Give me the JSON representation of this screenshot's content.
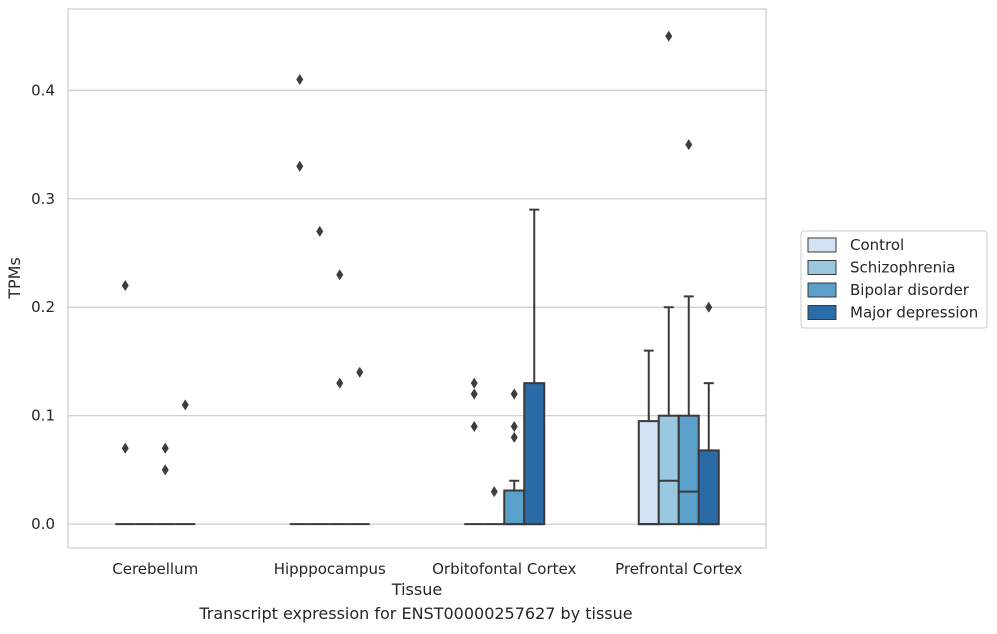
{
  "chart_data": {
    "type": "box",
    "xlabel": "Tissue",
    "ylabel": "TPMs",
    "ylim": [
      -0.022,
      0.475
    ],
    "yticks": [
      0.0,
      0.1,
      0.2,
      0.3,
      0.4
    ],
    "ytick_labels": [
      "0.0",
      "0.1",
      "0.2",
      "0.3",
      "0.4"
    ],
    "grid": "horizontal",
    "legend_position": "right",
    "categories": [
      "Cerebellum",
      "Hipppocampus",
      "Orbitofontal Cortex",
      "Prefrontal Cortex"
    ],
    "series": [
      {
        "name": "Control",
        "color": "#d2e3f3",
        "boxes": [
          {
            "q1": 0,
            "median": 0,
            "q3": 0,
            "whisker_low": 0,
            "whisker_high": 0,
            "outliers": [
              0.07,
              0.22
            ]
          },
          {
            "q1": 0,
            "median": 0,
            "q3": 0,
            "whisker_low": 0,
            "whisker_high": 0,
            "outliers": [
              0.33,
              0.41
            ]
          },
          {
            "q1": 0,
            "median": 0,
            "q3": 0,
            "whisker_low": 0,
            "whisker_high": 0,
            "outliers": [
              0.09,
              0.12,
              0.13
            ]
          },
          {
            "q1": 0,
            "median": 0,
            "q3": 0.095,
            "whisker_low": 0,
            "whisker_high": 0.16,
            "outliers": []
          }
        ]
      },
      {
        "name": "Schizophrenia",
        "color": "#9ac8e0",
        "boxes": [
          {
            "q1": 0,
            "median": 0,
            "q3": 0,
            "whisker_low": 0,
            "whisker_high": 0,
            "outliers": []
          },
          {
            "q1": 0,
            "median": 0,
            "q3": 0,
            "whisker_low": 0,
            "whisker_high": 0,
            "outliers": [
              0.27
            ]
          },
          {
            "q1": 0,
            "median": 0,
            "q3": 0,
            "whisker_low": 0,
            "whisker_high": 0,
            "outliers": [
              0.03
            ]
          },
          {
            "q1": 0,
            "median": 0.04,
            "q3": 0.1,
            "whisker_low": 0,
            "whisker_high": 0.2,
            "outliers": [
              0.45
            ]
          }
        ]
      },
      {
        "name": "Bipolar disorder",
        "color": "#5b9fcb",
        "boxes": [
          {
            "q1": 0,
            "median": 0,
            "q3": 0,
            "whisker_low": 0,
            "whisker_high": 0,
            "outliers": [
              0.05,
              0.07
            ]
          },
          {
            "q1": 0,
            "median": 0,
            "q3": 0,
            "whisker_low": 0,
            "whisker_high": 0,
            "outliers": [
              0.13,
              0.23
            ]
          },
          {
            "q1": 0,
            "median": 0,
            "q3": 0.031,
            "whisker_low": 0,
            "whisker_high": 0.04,
            "outliers": [
              0.08,
              0.09,
              0.12
            ]
          },
          {
            "q1": 0,
            "median": 0.03,
            "q3": 0.1,
            "whisker_low": 0,
            "whisker_high": 0.21,
            "outliers": [
              0.35
            ]
          }
        ]
      },
      {
        "name": "Major depression",
        "color": "#2b6ca8",
        "boxes": [
          {
            "q1": 0,
            "median": 0,
            "q3": 0,
            "whisker_low": 0,
            "whisker_high": 0,
            "outliers": [
              0.11
            ]
          },
          {
            "q1": 0,
            "median": 0,
            "q3": 0,
            "whisker_low": 0,
            "whisker_high": 0,
            "outliers": [
              0.14
            ]
          },
          {
            "q1": 0,
            "median": 0,
            "q3": 0.13,
            "whisker_low": 0,
            "whisker_high": 0.29,
            "outliers": []
          },
          {
            "q1": 0,
            "median": 0,
            "q3": 0.068,
            "whisker_low": 0,
            "whisker_high": 0.13,
            "outliers": [
              0.2
            ]
          }
        ]
      }
    ]
  },
  "caption": "Transcript expression for ENST00000257627 by tissue",
  "colors": {
    "grid": "#cccccc",
    "frame": "#cccccc",
    "line": "#3a3a3a",
    "outlier": "#3d3d3d"
  }
}
